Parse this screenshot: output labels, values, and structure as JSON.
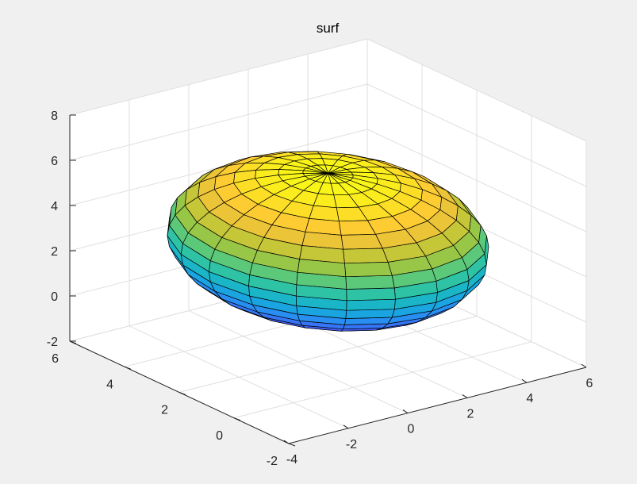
{
  "chart_data": {
    "type": "surface",
    "title": "surf",
    "xlabel": "",
    "ylabel": "",
    "zlabel": "",
    "xlim": [
      -4,
      6
    ],
    "ylim": [
      -2,
      6
    ],
    "zlim": [
      -2,
      8
    ],
    "x_ticks": [
      -4,
      -2,
      0,
      2,
      4,
      6
    ],
    "y_ticks": [
      -2,
      0,
      2,
      4,
      6
    ],
    "z_ticks": [
      -2,
      0,
      2,
      4,
      6,
      8
    ],
    "grid": true,
    "colormap": "parula",
    "edge_color": "#000000",
    "background_color": "#ffffff",
    "figure_color": "#f0f0f0",
    "surface": {
      "shape": "ellipsoid",
      "center": [
        1,
        2,
        3
      ],
      "radii": [
        4,
        4,
        3
      ],
      "meridians": 20,
      "parallels": 20
    }
  }
}
